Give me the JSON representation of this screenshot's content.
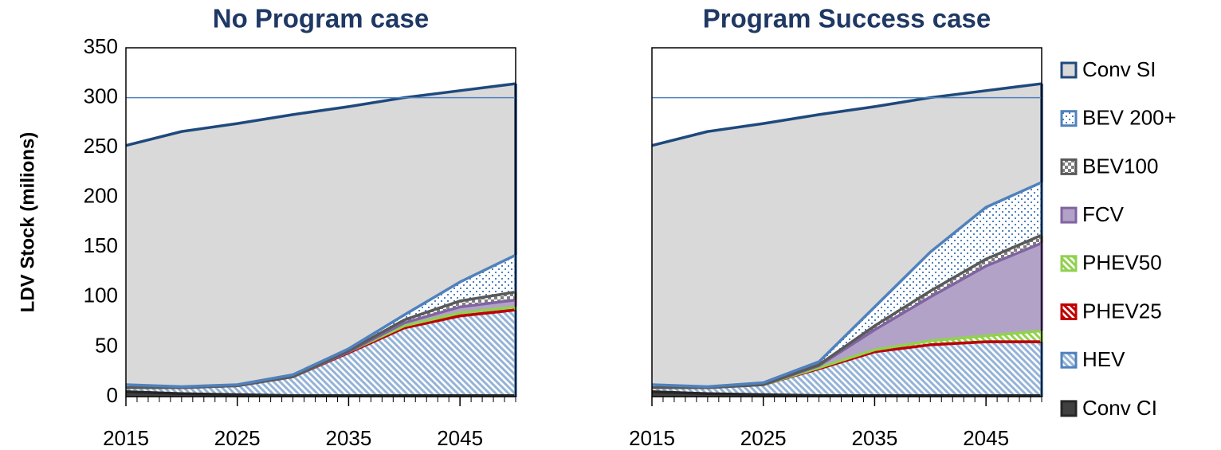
{
  "chart_data": [
    {
      "type": "stacked_area",
      "title": "No Program case",
      "y_label": "LDV Stock (milions)",
      "x": [
        2015,
        2020,
        2025,
        2030,
        2035,
        2040,
        2045,
        2050
      ],
      "xlim": [
        2015,
        2050
      ],
      "xticks": [
        2015,
        2025,
        2035,
        2045
      ],
      "xminor_step": 1,
      "ylim": [
        0,
        350
      ],
      "yticks": [
        0,
        50,
        100,
        150,
        200,
        250,
        300,
        350
      ],
      "reference_line": 300,
      "reference_color": "#4f81bd",
      "series": [
        {
          "name": "Conv CI",
          "color": "#404040",
          "line_color": "#262626",
          "pattern": "solid",
          "values": [
            5,
            3,
            2,
            1,
            1,
            1,
            1,
            1
          ]
        },
        {
          "name": "HEV",
          "color": "#95b3d7",
          "line_color": "#4f81bd",
          "pattern": "hatch",
          "values": [
            4,
            6,
            9,
            19,
            43,
            68,
            80,
            86
          ]
        },
        {
          "name": "PHEV25",
          "color": "#c00000",
          "line_color": "#c00000",
          "pattern": "hatch",
          "values": [
            0,
            0,
            0,
            0,
            0,
            0,
            0,
            0
          ]
        },
        {
          "name": "PHEV50",
          "color": "#92d050",
          "line_color": "#92d050",
          "pattern": "hatch",
          "values": [
            0,
            0,
            0,
            0,
            1,
            2,
            3,
            3
          ]
        },
        {
          "name": "FCV",
          "color": "#b3a2c7",
          "line_color": "#8064a2",
          "pattern": "solid",
          "values": [
            0,
            0,
            0,
            0,
            0,
            3,
            6,
            7
          ]
        },
        {
          "name": "BEV100",
          "color": "#7f7f7f",
          "line_color": "#595959",
          "pattern": "check",
          "values": [
            0,
            0,
            0,
            0,
            1,
            3,
            6,
            8
          ]
        },
        {
          "name": "BEV 200+",
          "color": "#4f81bd",
          "line_color": "#4f81bd",
          "pattern": "dots",
          "values": [
            3,
            1,
            1,
            2,
            2,
            5,
            19,
            37
          ]
        },
        {
          "name": "Conv SI",
          "color": "#d9d9d9",
          "line_color": "#1f497d",
          "pattern": "solid",
          "values": [
            240,
            256,
            262,
            261,
            243,
            218,
            192,
            172
          ]
        }
      ]
    },
    {
      "type": "stacked_area",
      "title": "Program Success case",
      "x": [
        2015,
        2020,
        2025,
        2030,
        2035,
        2040,
        2045,
        2050
      ],
      "xlim": [
        2015,
        2050
      ],
      "xticks": [
        2015,
        2025,
        2035,
        2045
      ],
      "xminor_step": 1,
      "ylim": [
        0,
        350
      ],
      "reference_line": 300,
      "reference_color": "#4f81bd",
      "legend": "right",
      "series": [
        {
          "name": "Conv CI",
          "color": "#404040",
          "line_color": "#262626",
          "pattern": "solid",
          "values": [
            5,
            3,
            2,
            1,
            1,
            1,
            1,
            1
          ]
        },
        {
          "name": "HEV",
          "color": "#95b3d7",
          "line_color": "#4f81bd",
          "pattern": "hatch",
          "values": [
            4,
            6,
            10,
            27,
            44,
            51,
            54,
            54
          ]
        },
        {
          "name": "PHEV25",
          "color": "#c00000",
          "line_color": "#c00000",
          "pattern": "hatch",
          "values": [
            0,
            0,
            0,
            0,
            0,
            0,
            0,
            0
          ]
        },
        {
          "name": "PHEV50",
          "color": "#92d050",
          "line_color": "#92d050",
          "pattern": "hatch",
          "values": [
            0,
            0,
            0,
            1,
            2,
            4,
            6,
            11
          ]
        },
        {
          "name": "FCV",
          "color": "#b3a2c7",
          "line_color": "#8064a2",
          "pattern": "solid",
          "values": [
            0,
            0,
            0,
            2,
            20,
            44,
            70,
            88
          ]
        },
        {
          "name": "BEV100",
          "color": "#7f7f7f",
          "line_color": "#595959",
          "pattern": "check",
          "values": [
            0,
            0,
            0,
            1,
            4,
            6,
            7,
            8
          ]
        },
        {
          "name": "BEV 200+",
          "color": "#4f81bd",
          "line_color": "#4f81bd",
          "pattern": "dots",
          "values": [
            3,
            1,
            2,
            3,
            19,
            39,
            52,
            53
          ]
        },
        {
          "name": "Conv SI",
          "color": "#d9d9d9",
          "line_color": "#1f497d",
          "pattern": "solid",
          "values": [
            240,
            256,
            260,
            248,
            201,
            155,
            117,
            99
          ]
        }
      ]
    }
  ]
}
